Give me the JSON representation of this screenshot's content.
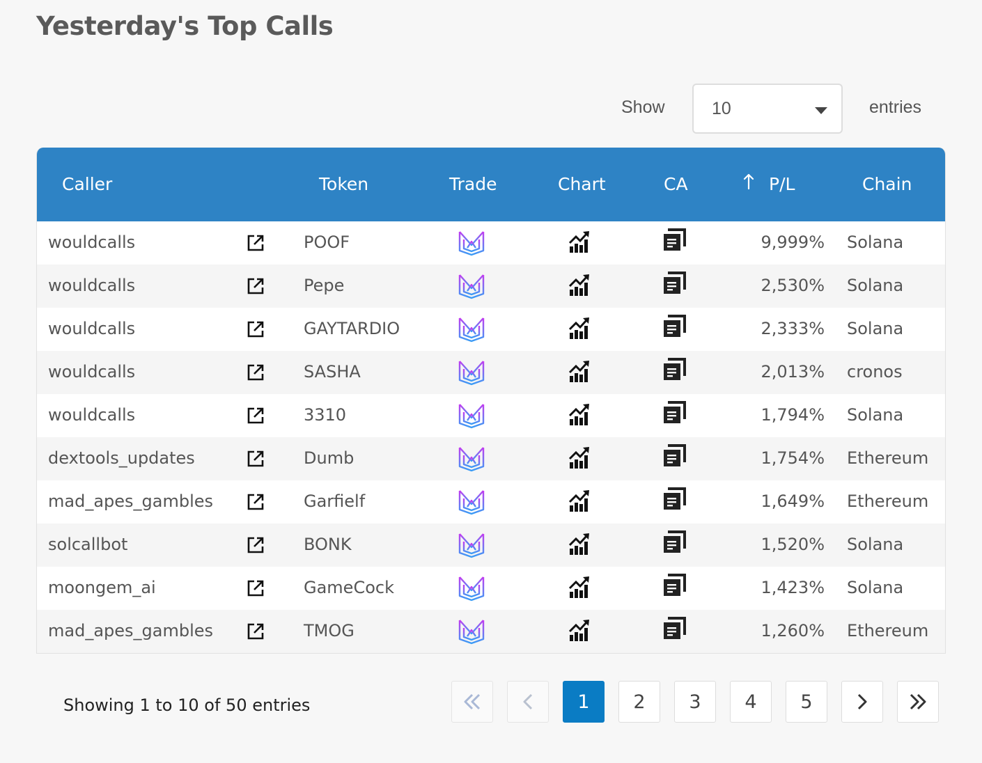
{
  "page": {
    "title": "Yesterday's Top Calls"
  },
  "length_control": {
    "show_label": "Show",
    "selected": "10",
    "entries_label": "entries"
  },
  "table": {
    "headers": {
      "caller": "Caller",
      "token": "Token",
      "trade": "Trade",
      "chart": "Chart",
      "ca": "CA",
      "pl": "P/L",
      "chain": "Chain"
    },
    "sort_column": "P/L",
    "rows": [
      {
        "caller": "wouldcalls",
        "token": "POOF",
        "pl": "9,999%",
        "chain": "Solana"
      },
      {
        "caller": "wouldcalls",
        "token": "Pepe",
        "pl": "2,530%",
        "chain": "Solana"
      },
      {
        "caller": "wouldcalls",
        "token": "GAYTARDIO",
        "pl": "2,333%",
        "chain": "Solana"
      },
      {
        "caller": "wouldcalls",
        "token": "SASHA",
        "pl": "2,013%",
        "chain": "cronos"
      },
      {
        "caller": "wouldcalls",
        "token": "3310",
        "pl": "1,794%",
        "chain": "Solana"
      },
      {
        "caller": "dextools_updates",
        "token": "Dumb",
        "pl": "1,754%",
        "chain": "Ethereum"
      },
      {
        "caller": "mad_apes_gambles",
        "token": "Garfielf",
        "pl": "1,649%",
        "chain": "Ethereum"
      },
      {
        "caller": "solcallbot",
        "token": "BONK",
        "pl": "1,520%",
        "chain": "Solana"
      },
      {
        "caller": "moongem_ai",
        "token": "GameCock",
        "pl": "1,423%",
        "chain": "Solana"
      },
      {
        "caller": "mad_apes_gambles",
        "token": "TMOG",
        "pl": "1,260%",
        "chain": "Ethereum"
      }
    ]
  },
  "icons": {
    "caller_link": "external-link-icon",
    "trade": "trade-logo-icon",
    "chart": "chart-growth-icon",
    "ca": "copy-document-icon",
    "sort": "sort-up-arrow-icon"
  },
  "footer": {
    "info": "Showing 1 to 10 of 50 entries",
    "pages": [
      "1",
      "2",
      "3",
      "4",
      "5"
    ],
    "current_page": "1"
  },
  "colors": {
    "header_bg": "#2e83c5",
    "active_page": "#0a7cc4",
    "trade_gradient_start": "#c43bf0",
    "trade_gradient_end": "#3a9cf5"
  }
}
